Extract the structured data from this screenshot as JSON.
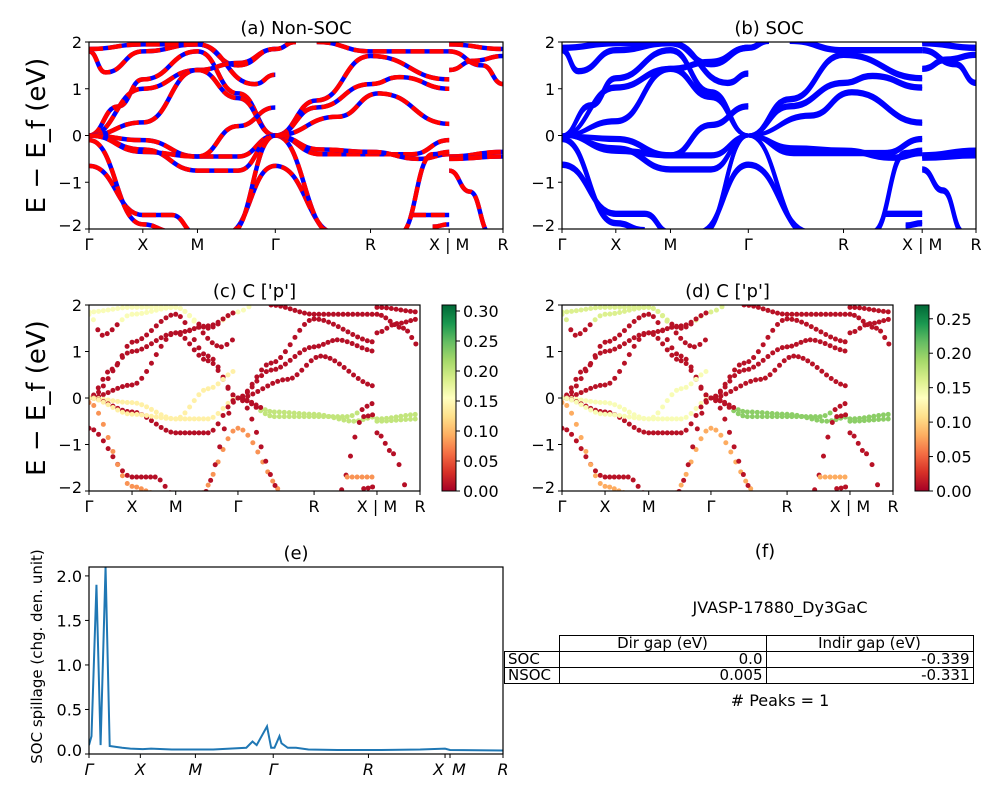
{
  "chart_data": [
    {
      "id": "a",
      "type": "line",
      "title": "(a) Non-SOC",
      "ylabel": "E − E_f (eV)",
      "ylim": [
        -2,
        2
      ],
      "yticks": [
        "−2",
        "−1",
        "0",
        "1",
        "2"
      ],
      "yticks_values": [
        -2,
        -1,
        0,
        1,
        2
      ],
      "xticks": [
        "Γ",
        "X",
        "M",
        "Γ",
        "R",
        "X | M",
        "R"
      ],
      "xticks_positions": [
        0,
        0.13,
        0.262,
        0.45,
        0.68,
        0.87,
        1.0
      ],
      "colors": {
        "primary": "#ff0000",
        "secondary": "#0000ff"
      },
      "style": "dashed red over blue",
      "bands_note": "approximate band curves sampled at the high-symmetry path, energies in eV",
      "bands": [
        [
          [
            0,
            1.8
          ],
          [
            0.04,
            1.35
          ],
          [
            0.13,
            1.8
          ],
          [
            0.262,
            1.95
          ],
          [
            0.36,
            1.5
          ],
          [
            0.45,
            1.85
          ],
          [
            0.5,
            2.0
          ]
        ],
        [
          [
            0,
            1.85
          ],
          [
            0.13,
            1.95
          ],
          [
            0.262,
            1.95
          ],
          [
            0.4,
            1.1
          ],
          [
            0.45,
            1.3
          ]
        ],
        [
          [
            0,
            0
          ],
          [
            0.07,
            0.62
          ],
          [
            0.13,
            1.2
          ],
          [
            0.262,
            1.8
          ],
          [
            0.36,
            0.9
          ],
          [
            0.45,
            0
          ]
        ],
        [
          [
            0,
            0
          ],
          [
            0.13,
            1.0
          ],
          [
            0.262,
            1.4
          ],
          [
            0.36,
            1.55
          ],
          [
            0.45,
            1.85
          ]
        ],
        [
          [
            0,
            0
          ],
          [
            0.13,
            0.28
          ],
          [
            0.262,
            1.4
          ],
          [
            0.36,
            0.8
          ],
          [
            0.45,
            0
          ]
        ],
        [
          [
            0,
            0
          ],
          [
            0.13,
            -0.1
          ],
          [
            0.262,
            -0.45
          ],
          [
            0.36,
            -0.45
          ],
          [
            0.45,
            0
          ]
        ],
        [
          [
            0,
            0
          ],
          [
            0.13,
            -0.3
          ],
          [
            0.262,
            -0.75
          ],
          [
            0.36,
            -0.75
          ],
          [
            0.45,
            0
          ]
        ],
        [
          [
            0,
            0
          ],
          [
            0.13,
            -0.35
          ],
          [
            0.262,
            -0.45
          ],
          [
            0.36,
            0.2
          ],
          [
            0.45,
            0.6
          ]
        ],
        [
          [
            0,
            -0.65
          ],
          [
            0.13,
            -1.7
          ],
          [
            0.2,
            -1.7
          ],
          [
            0.26,
            -2.1
          ]
        ],
        [
          [
            0,
            -0.1
          ],
          [
            0.13,
            -1.9
          ],
          [
            0.2,
            -2.05
          ]
        ],
        [
          [
            0.33,
            -2.1
          ],
          [
            0.45,
            -0.65
          ],
          [
            0.6,
            -2.1
          ]
        ],
        [
          [
            0.34,
            -2.1
          ],
          [
            0.45,
            0
          ],
          [
            0.59,
            -2.1
          ]
        ],
        [
          [
            0.45,
            0
          ],
          [
            0.55,
            0.75
          ],
          [
            0.68,
            1.7
          ],
          [
            0.87,
            1.2
          ]
        ],
        [
          [
            0.45,
            0
          ],
          [
            0.55,
            0.6
          ],
          [
            0.68,
            1.1
          ],
          [
            0.75,
            1.25
          ],
          [
            0.87,
            1.0
          ]
        ],
        [
          [
            0.45,
            0
          ],
          [
            0.56,
            -0.4
          ],
          [
            0.68,
            -0.4
          ],
          [
            0.78,
            -0.4
          ],
          [
            0.87,
            -0.1
          ]
        ],
        [
          [
            0.45,
            0
          ],
          [
            0.56,
            -0.3
          ],
          [
            0.68,
            -0.35
          ],
          [
            0.8,
            -0.5
          ],
          [
            0.87,
            -0.4
          ]
        ],
        [
          [
            0.55,
            2.0
          ],
          [
            0.68,
            1.8
          ],
          [
            0.87,
            1.8
          ]
        ],
        [
          [
            0.45,
            0
          ],
          [
            0.6,
            0.4
          ],
          [
            0.7,
            0.9
          ],
          [
            0.87,
            0.25
          ]
        ],
        [
          [
            0.75,
            -2.1
          ],
          [
            0.83,
            -0.4
          ],
          [
            0.87,
            -0.35
          ]
        ],
        [
          [
            0.78,
            -1.7
          ],
          [
            0.87,
            -1.7
          ]
        ],
        [
          [
            0.83,
            -1.95
          ],
          [
            0.87,
            -1.9
          ]
        ],
        [
          [
            0.87,
            1.4
          ],
          [
            0.93,
            1.6
          ],
          [
            1.0,
            1.7
          ]
        ],
        [
          [
            0.87,
            1.8
          ],
          [
            0.95,
            1.5
          ],
          [
            1.0,
            1.1
          ]
        ],
        [
          [
            0.87,
            -0.45
          ],
          [
            1.0,
            -0.35
          ]
        ],
        [
          [
            0.87,
            -0.5
          ],
          [
            1.0,
            -0.45
          ]
        ],
        [
          [
            0.87,
            -0.75
          ],
          [
            0.92,
            -1.2
          ],
          [
            0.97,
            -2.1
          ]
        ],
        [
          [
            0.87,
            1.95
          ],
          [
            1.0,
            1.85
          ]
        ]
      ]
    },
    {
      "id": "b",
      "type": "line",
      "title": "(b) SOC",
      "ylim": [
        -2,
        2
      ],
      "yticks": [
        "−2",
        "−1",
        "0",
        "1",
        "2"
      ],
      "yticks_values": [
        -2,
        -1,
        0,
        1,
        2
      ],
      "xticks": [
        "Γ",
        "X",
        "M",
        "Γ",
        "R",
        "X | M",
        "R"
      ],
      "xticks_positions": [
        0,
        0.13,
        0.262,
        0.45,
        0.68,
        0.87,
        1.0
      ],
      "colors": {
        "primary": "#0000ff"
      },
      "style": "solid blue, doubled bands"
    },
    {
      "id": "c",
      "type": "scatter",
      "title": "(c)  C ['p']",
      "ylabel": "E − E_f (eV)",
      "ylim": [
        -2,
        2
      ],
      "yticks": [
        "−2",
        "−1",
        "0",
        "1",
        "2"
      ],
      "yticks_values": [
        -2,
        -1,
        0,
        1,
        2
      ],
      "xticks": [
        "Γ",
        "X",
        "M",
        "Γ",
        "R",
        "X | M",
        "R"
      ],
      "xticks_positions": [
        0,
        0.13,
        0.262,
        0.45,
        0.68,
        0.87,
        1.0
      ],
      "colormap": "RdYlGn",
      "colorbar": {
        "min": 0.0,
        "max": 0.31,
        "ticks": [
          "0.00",
          "0.05",
          "0.10",
          "0.15",
          "0.20",
          "0.25",
          "0.30"
        ],
        "tick_values": [
          0,
          0.05,
          0.1,
          0.15,
          0.2,
          0.25,
          0.3
        ]
      }
    },
    {
      "id": "d",
      "type": "scatter",
      "title": "(d) C ['p']",
      "ylim": [
        -2,
        2
      ],
      "yticks": [
        "−2",
        "−1",
        "0",
        "1",
        "2"
      ],
      "yticks_values": [
        -2,
        -1,
        0,
        1,
        2
      ],
      "xticks": [
        "Γ",
        "X",
        "M",
        "Γ",
        "R",
        "X | M",
        "R"
      ],
      "xticks_positions": [
        0,
        0.13,
        0.262,
        0.45,
        0.68,
        0.87,
        1.0
      ],
      "colormap": "RdYlGn",
      "colorbar": {
        "min": 0.0,
        "max": 0.27,
        "ticks": [
          "0.00",
          "0.05",
          "0.10",
          "0.15",
          "0.20",
          "0.25"
        ],
        "tick_values": [
          0,
          0.05,
          0.1,
          0.15,
          0.2,
          0.25
        ]
      }
    },
    {
      "id": "e",
      "type": "line",
      "title": "(e)",
      "ylabel": "SOC spillage (chg. den. unit)",
      "ylim": [
        0,
        2.1
      ],
      "yticks": [
        "0.0",
        "0.5",
        "1.0",
        "1.5",
        "2.0"
      ],
      "yticks_values": [
        0,
        0.5,
        1.0,
        1.5,
        2.0
      ],
      "xticks": [
        "Γ",
        "X",
        "M",
        "Γ",
        "R",
        "X",
        "M",
        "R"
      ],
      "xticks_positions": [
        0,
        0.124,
        0.257,
        0.445,
        0.675,
        0.86,
        0.872,
        1.0
      ],
      "color": "#1f77b4",
      "x": [
        0,
        0.006,
        0.018,
        0.028,
        0.04,
        0.05,
        0.08,
        0.1,
        0.13,
        0.15,
        0.2,
        0.3,
        0.38,
        0.395,
        0.405,
        0.43,
        0.44,
        0.448,
        0.46,
        0.465,
        0.48,
        0.5,
        0.53,
        0.6,
        0.7,
        0.8,
        0.86,
        0.872,
        1.0
      ],
      "y": [
        0.1,
        0.2,
        1.9,
        0.1,
        2.1,
        0.09,
        0.07,
        0.06,
        0.055,
        0.06,
        0.05,
        0.05,
        0.07,
        0.14,
        0.1,
        0.31,
        0.07,
        0.07,
        0.2,
        0.12,
        0.07,
        0.07,
        0.05,
        0.045,
        0.045,
        0.05,
        0.06,
        0.045,
        0.04
      ]
    },
    {
      "id": "f",
      "type": "table",
      "title": "(f)",
      "subtitle": "JVASP-17880_Dy3GaC",
      "columns": [
        "",
        "Dir gap (eV)",
        "Indir gap (eV)"
      ],
      "rows": [
        [
          "SOC",
          "0.0",
          "-0.339"
        ],
        [
          "NSOC",
          "0.005",
          "-0.331"
        ]
      ],
      "footer": "# Peaks = 1"
    }
  ]
}
